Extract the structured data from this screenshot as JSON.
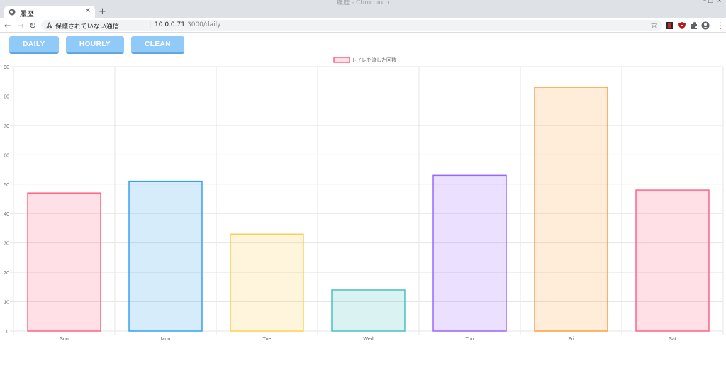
{
  "window": {
    "title": "履歴 - Chromium"
  },
  "tab": {
    "title": "履歴"
  },
  "address_bar": {
    "security_label": "保護されていない通信",
    "url_host": "10.0.0.71",
    "url_rest": ":3000/daily"
  },
  "buttons": {
    "daily": "DAILY",
    "hourly": "HOURLY",
    "clean": "CLEAN"
  },
  "colors": {
    "button_bg": "#90caf9",
    "grid": "#e6e6e6"
  },
  "chart_data": {
    "type": "bar",
    "categories": [
      "Sun",
      "Mon",
      "Tue",
      "Wed",
      "Thu",
      "Fri",
      "Sat"
    ],
    "series": [
      {
        "name": "トイレを流した回数",
        "values": [
          47,
          51,
          33,
          14,
          53,
          83,
          48
        ]
      }
    ],
    "colors": [
      {
        "fill": "rgba(255,99,132,0.2)",
        "stroke": "#ff6384"
      },
      {
        "fill": "rgba(54,162,235,0.2)",
        "stroke": "#36a2eb"
      },
      {
        "fill": "rgba(255,206,86,0.2)",
        "stroke": "#ffce56"
      },
      {
        "fill": "rgba(75,192,192,0.2)",
        "stroke": "#4bc0c0"
      },
      {
        "fill": "rgba(153,102,255,0.2)",
        "stroke": "#9966ff"
      },
      {
        "fill": "rgba(255,159,64,0.2)",
        "stroke": "#ff9f40"
      },
      {
        "fill": "rgba(255,99,132,0.2)",
        "stroke": "#ff6384"
      }
    ],
    "yticks": [
      0,
      10,
      20,
      30,
      40,
      50,
      60,
      70,
      80,
      90
    ],
    "ylim": [
      0,
      90
    ],
    "grid": true,
    "legend": "top-center"
  }
}
